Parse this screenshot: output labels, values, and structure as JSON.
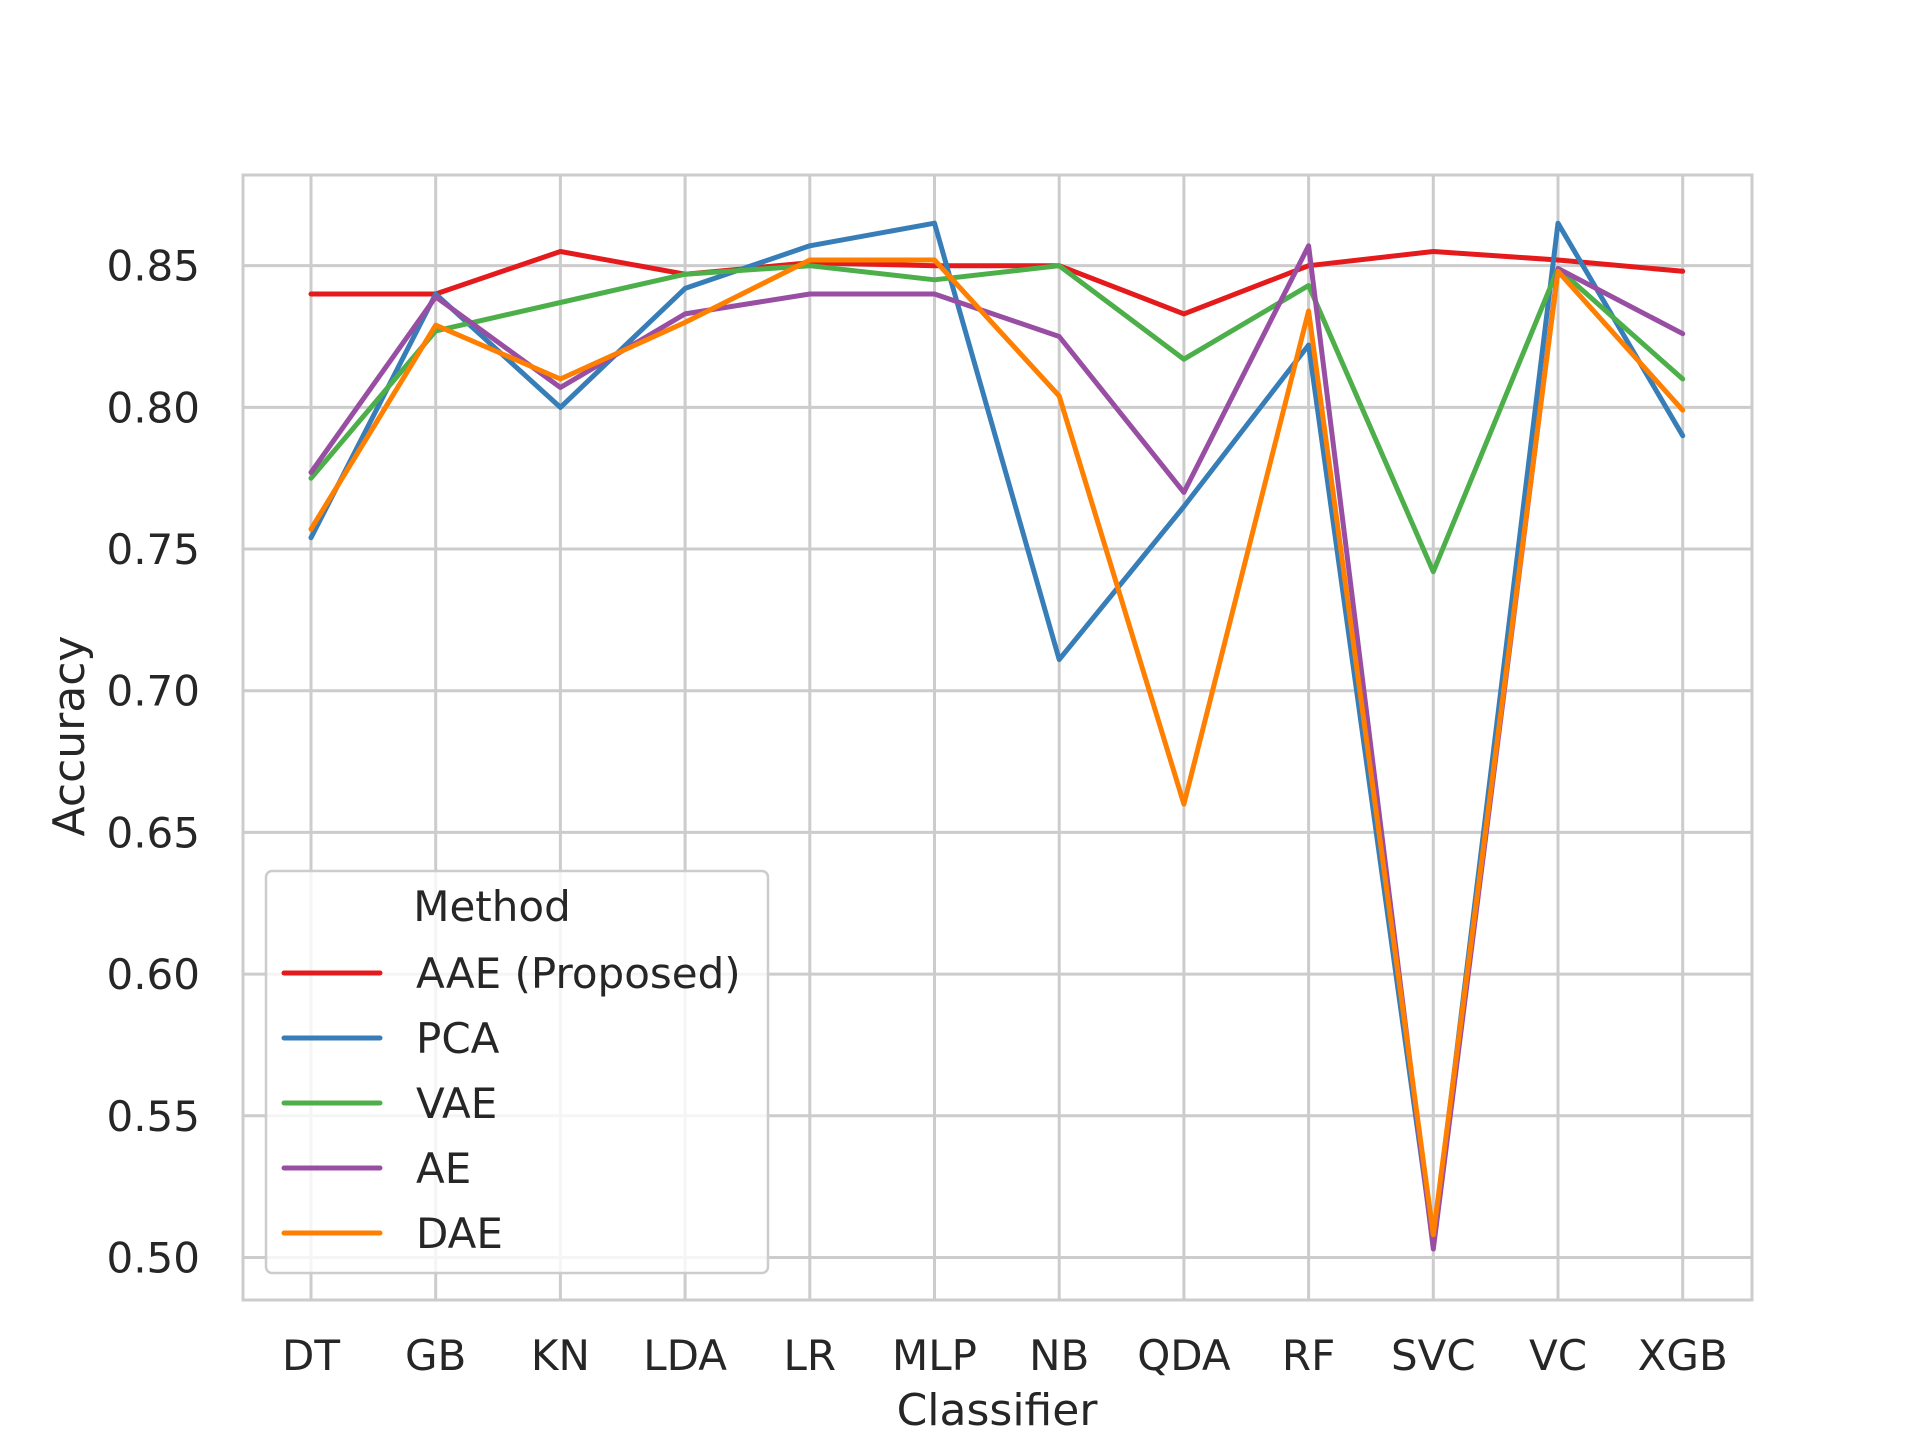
{
  "chart_data": {
    "type": "line",
    "title": "",
    "xlabel": "Classifier",
    "ylabel": "Accuracy",
    "categories": [
      "DT",
      "GB",
      "KN",
      "LDA",
      "LR",
      "MLP",
      "NB",
      "QDA",
      "RF",
      "SVC",
      "VC",
      "XGB"
    ],
    "ylim": [
      0.485,
      0.882
    ],
    "yticks": [
      0.5,
      0.55,
      0.6,
      0.65,
      0.7,
      0.75,
      0.8,
      0.85
    ],
    "ytick_labels": [
      "0.50",
      "0.55",
      "0.60",
      "0.65",
      "0.70",
      "0.75",
      "0.80",
      "0.85"
    ],
    "grid": true,
    "legend": {
      "title": "Method",
      "placement": "lower-left"
    },
    "series": [
      {
        "name": "AAE (Proposed)",
        "color": "#e41a1c",
        "values": [
          0.84,
          0.84,
          0.855,
          0.847,
          0.851,
          0.85,
          0.85,
          0.833,
          0.85,
          0.855,
          0.852,
          0.848
        ]
      },
      {
        "name": "PCA",
        "color": "#377eb8",
        "values": [
          0.754,
          0.84,
          0.8,
          0.842,
          0.857,
          0.865,
          0.711,
          0.765,
          0.822,
          0.505,
          0.865,
          0.79
        ]
      },
      {
        "name": "VAE",
        "color": "#4daf4a",
        "values": [
          0.775,
          0.827,
          0.837,
          0.847,
          0.85,
          0.845,
          0.85,
          0.817,
          0.843,
          0.742,
          0.849,
          0.81
        ]
      },
      {
        "name": "AE",
        "color": "#984ea3",
        "values": [
          0.777,
          0.839,
          0.807,
          0.833,
          0.84,
          0.84,
          0.825,
          0.77,
          0.857,
          0.503,
          0.849,
          0.826
        ]
      },
      {
        "name": "DAE",
        "color": "#ff7f00",
        "values": [
          0.757,
          0.829,
          0.81,
          0.83,
          0.852,
          0.852,
          0.804,
          0.66,
          0.834,
          0.508,
          0.848,
          0.799
        ]
      }
    ]
  }
}
